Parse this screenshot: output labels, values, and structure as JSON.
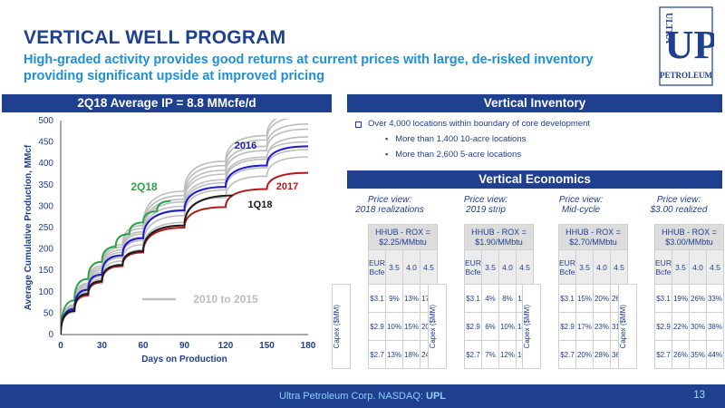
{
  "title": "VERTICAL WELL PROGRAM",
  "subtitle": "High-graded activity provides good returns at current prices with large, de-risked inventory providing significant upside at improved pricing",
  "logo": {
    "top": "ULTRA",
    "mark": "UP",
    "bottom": "PETROLEUM"
  },
  "left_header": "2Q18 Average IP = 8.8 MMcfe/d",
  "inventory": {
    "header": "Vertical Inventory",
    "bullet_main": "Over 4,000 locations within boundary of core development",
    "bullet_sub1": "More than 1,400 10-acre locations",
    "bullet_sub2": "More than 2,600  5-acre locations"
  },
  "economics": {
    "header": "Vertical Economics",
    "matrices": [
      {
        "view_line1": "Price view:",
        "view_line2": "2018 realizations",
        "hhub_line1": "HHUB - ROX =",
        "hhub_line2": "$2.25/MMbtu",
        "eur_label": "EUR Bcfe",
        "eurs": [
          "3.5",
          "4.0",
          "4.5"
        ],
        "capex_label": "Capex ($MM)",
        "rows": [
          {
            "capex": "$3.1",
            "vals": [
              "9%",
              "13%",
              "17%"
            ]
          },
          {
            "capex": "$2.9",
            "vals": [
              "10%",
              "15%",
              "20%"
            ]
          },
          {
            "capex": "$2.7",
            "vals": [
              "13%",
              "18%",
              "24%"
            ]
          }
        ]
      },
      {
        "view_line1": "Price view:",
        "view_line2": "2019 strip",
        "hhub_line1": "HHUB - ROX =",
        "hhub_line2": "$1.90/MMbtu",
        "eur_label": "EUR Bcfe",
        "eurs": [
          "3.5",
          "4.0",
          "4.5"
        ],
        "capex_label": "Capex ($MM)",
        "rows": [
          {
            "capex": "$3.1",
            "vals": [
              "4%",
              "8%",
              "11%"
            ]
          },
          {
            "capex": "$2.9",
            "vals": [
              "6%",
              "10%",
              "14%"
            ]
          },
          {
            "capex": "$2.7",
            "vals": [
              "7%",
              "12%",
              "16%"
            ]
          }
        ]
      },
      {
        "view_line1": "Price view:",
        "view_line2": "Mid-cycle",
        "hhub_line1": "HHUB - ROX =",
        "hhub_line2": "$2.70/MMbtu",
        "eur_label": "EUR Bcfe",
        "eurs": [
          "3.5",
          "4.0",
          "4.5"
        ],
        "capex_label": "Capex ($MM)",
        "rows": [
          {
            "capex": "$3.1",
            "vals": [
              "15%",
              "20%",
              "26%"
            ]
          },
          {
            "capex": "$2.9",
            "vals": [
              "17%",
              "23%",
              "31%"
            ]
          },
          {
            "capex": "$2.7",
            "vals": [
              "20%",
              "28%",
              "36%"
            ]
          }
        ]
      },
      {
        "view_line1": "Price view:",
        "view_line2": "$3.00 realized",
        "hhub_line1": "HHUB - ROX =",
        "hhub_line2": "$3.00/MMbtu",
        "eur_label": "EUR Bcfe",
        "eurs": [
          "3.5",
          "4.0",
          "4.5"
        ],
        "capex_label": "Capex ($MM)",
        "rows": [
          {
            "capex": "$3.1",
            "vals": [
              "19%",
              "26%",
              "33%"
            ]
          },
          {
            "capex": "$2.9",
            "vals": [
              "22%",
              "30%",
              "38%"
            ]
          },
          {
            "capex": "$2.7",
            "vals": [
              "26%",
              "35%",
              "44%"
            ]
          }
        ]
      }
    ]
  },
  "footer": {
    "text": "Ultra Petroleum Corp. NASDAQ:",
    "ticker": "UPL",
    "page": "13"
  },
  "colors": {
    "navy": "#1f3f8f",
    "accent": "#1f8fd6"
  },
  "chart_data": {
    "type": "line",
    "title": "",
    "xlabel": "Days on Production",
    "ylabel": "Average Cumulative Production, MMcf",
    "xlim": [
      0,
      180
    ],
    "ylim": [
      0,
      500
    ],
    "xticks": [
      0,
      30,
      60,
      90,
      120,
      150,
      180
    ],
    "yticks": [
      0,
      50,
      100,
      150,
      200,
      250,
      300,
      350,
      400,
      450,
      500
    ],
    "series": [
      {
        "name": "2Q18",
        "color": "#2fa24a",
        "x": [
          0,
          10,
          20,
          30,
          40,
          50,
          60,
          70,
          80
        ],
        "y": [
          0,
          80,
          130,
          170,
          205,
          235,
          262,
          288,
          312
        ]
      },
      {
        "name": "2016",
        "color": "#1a1ad0",
        "x": [
          0,
          10,
          20,
          30,
          45,
          60,
          90,
          120,
          150,
          180
        ],
        "y": [
          0,
          60,
          105,
          140,
          185,
          225,
          290,
          345,
          395,
          440
        ]
      },
      {
        "name": "2017",
        "color": "#b01a1a",
        "x": [
          0,
          10,
          20,
          30,
          45,
          60,
          90,
          120,
          150,
          180
        ],
        "y": [
          0,
          55,
          92,
          122,
          160,
          192,
          250,
          298,
          340,
          378
        ]
      },
      {
        "name": "1Q18",
        "color": "#1a1a1a",
        "x": [
          0,
          10,
          20,
          30,
          45,
          60,
          90,
          125
        ],
        "y": [
          0,
          55,
          95,
          125,
          163,
          195,
          255,
          325
        ]
      },
      {
        "name": "2010 to 2015",
        "color": "#bdbdbd",
        "x": [
          0,
          10,
          20,
          30,
          45,
          60,
          90,
          120,
          150,
          180
        ],
        "y": [
          0,
          70,
          120,
          160,
          210,
          255,
          335,
          405,
          465,
          520
        ]
      },
      {
        "name": "2010 to 2015",
        "color": "#bdbdbd",
        "x": [
          0,
          10,
          20,
          30,
          45,
          60,
          90,
          120,
          150,
          180
        ],
        "y": [
          0,
          68,
          116,
          155,
          204,
          248,
          325,
          395,
          455,
          510
        ]
      },
      {
        "name": "2010 to 2015",
        "color": "#bdbdbd",
        "x": [
          0,
          10,
          20,
          30,
          45,
          60,
          90,
          120,
          150,
          180
        ],
        "y": [
          0,
          62,
          108,
          145,
          192,
          235,
          310,
          375,
          430,
          480
        ]
      },
      {
        "name": "2010 to 2015",
        "color": "#bdbdbd",
        "x": [
          0,
          10,
          20,
          30,
          45,
          60,
          90,
          120,
          150,
          180
        ],
        "y": [
          0,
          58,
          100,
          136,
          180,
          220,
          292,
          355,
          410,
          462
        ]
      },
      {
        "name": "2010 to 2015",
        "color": "#bdbdbd",
        "x": [
          0,
          10,
          20,
          30,
          45,
          60,
          90,
          120,
          150,
          180
        ],
        "y": [
          0,
          60,
          104,
          140,
          186,
          228,
          300,
          362,
          415,
          450
        ]
      },
      {
        "name": "2010 to 2015",
        "color": "#bdbdbd",
        "x": [
          0,
          10,
          20,
          30,
          45,
          60,
          90,
          120,
          150,
          180
        ],
        "y": [
          0,
          55,
          96,
          130,
          172,
          210,
          278,
          338,
          390,
          432
        ]
      },
      {
        "name": "2010 to 2015",
        "color": "#bdbdbd",
        "x": [
          0,
          10,
          20,
          30,
          45,
          60,
          90,
          120,
          150,
          180
        ],
        "y": [
          0,
          52,
          90,
          122,
          162,
          198,
          262,
          320,
          370,
          415
        ]
      },
      {
        "name": "2010 to 2015",
        "color": "#bdbdbd",
        "x": [
          0,
          10,
          20,
          30,
          45,
          60,
          90,
          120,
          150,
          180
        ],
        "y": [
          0,
          66,
          112,
          150,
          198,
          240,
          316,
          384,
          440,
          492
        ]
      }
    ],
    "annotations": [
      {
        "text": "2Q18",
        "color": "#2fa24a"
      },
      {
        "text": "2016",
        "color": "#1a1ad0"
      },
      {
        "text": "2017",
        "color": "#b01a1a"
      },
      {
        "text": "1Q18",
        "color": "#1a1a1a"
      },
      {
        "text": "2010 to 2015",
        "color": "#bdbdbd"
      }
    ],
    "grid": false
  }
}
